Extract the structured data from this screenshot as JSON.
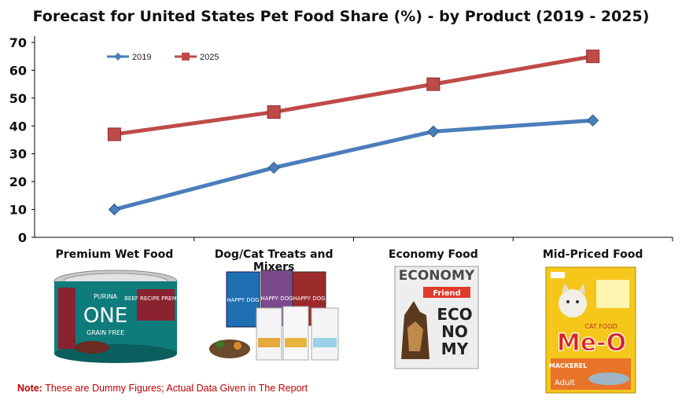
{
  "chart_data": {
    "type": "line",
    "title": "Forecast for United States Pet Food  Share (%)  - by Product (2019  - 2025)",
    "categories": [
      "Premium Wet Food",
      "Dog/Cat Treats and Mixers",
      "Economy Food",
      "Mid-Priced Food"
    ],
    "series": [
      {
        "name": "2019",
        "values": [
          10,
          25,
          38,
          42
        ],
        "color": "#4a7ebb",
        "marker": "diamond"
      },
      {
        "name": "2025",
        "values": [
          37,
          45,
          55,
          65
        ],
        "color": "#be4b48",
        "marker": "square"
      }
    ],
    "ylim": [
      0,
      70
    ],
    "yticks": [
      0,
      10,
      20,
      30,
      40,
      50,
      60,
      70
    ],
    "xlabel": "",
    "ylabel": "",
    "legend": "top-left"
  },
  "products": {
    "wet": {
      "brand": "PURINA",
      "name": "ONE",
      "sub": "GRAIN FREE",
      "flavor": "BEEF RECIPE PREMIUM"
    },
    "treats": {
      "brand": "HAPPY DOG"
    },
    "economy": {
      "top": "ECONOMY",
      "brand": "Friend",
      "big1": "ECO",
      "big2": "NO",
      "big3": "MY"
    },
    "mid": {
      "brand": "Me-O",
      "flavor": "MACKEREL",
      "age": "Adult",
      "tag": "CAT FOOD"
    }
  },
  "note": {
    "label": "Note:",
    "text": " These are Dummy Figures; Actual Data Given in The Report"
  },
  "colors": {
    "s2019": "#4a7ebb",
    "s2025": "#be4b48",
    "axis": "#000000"
  }
}
